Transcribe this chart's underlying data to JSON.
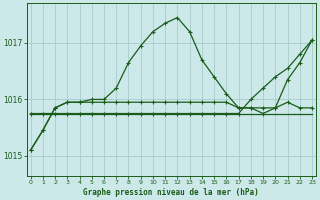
{
  "title": "Graphe pression niveau de la mer (hPa)",
  "x_ticks": [
    0,
    1,
    2,
    3,
    4,
    5,
    6,
    7,
    8,
    9,
    10,
    11,
    12,
    13,
    14,
    15,
    16,
    17,
    18,
    19,
    20,
    21,
    22,
    23
  ],
  "y_ticks": [
    1015,
    1016,
    1017
  ],
  "ylim": [
    1014.65,
    1017.7
  ],
  "xlim": [
    -0.3,
    23.3
  ],
  "bg_color": "#cce8e8",
  "grid_color": "#aacccc",
  "line_color": "#1a5c1a",
  "series_upper": [
    1015.1,
    1015.45,
    1015.85,
    1015.95,
    1015.95,
    1016.0,
    1016.0,
    1016.2,
    1016.65,
    1016.95,
    1017.2,
    1017.35,
    1017.45,
    1017.2,
    1016.7,
    1016.4,
    1016.1,
    1015.85,
    1015.85,
    1015.85,
    1015.85,
    1016.35,
    1016.65,
    1017.05
  ],
  "series_lower": [
    1015.1,
    1015.45,
    1015.85,
    1015.95,
    1015.95,
    1015.95,
    1015.95,
    1015.95,
    1015.95,
    1015.95,
    1015.95,
    1015.95,
    1015.95,
    1015.95,
    1015.95,
    1015.95,
    1015.95,
    1015.85,
    1015.85,
    1015.75,
    1015.85,
    1015.95,
    1015.85,
    1015.85
  ],
  "series_trend_bottom": [
    1015.75,
    1015.75,
    1015.75,
    1015.75,
    1015.75,
    1015.75,
    1015.75,
    1015.75,
    1015.75,
    1015.75,
    1015.75,
    1015.75,
    1015.75,
    1015.75,
    1015.75,
    1015.75,
    1015.75,
    1015.75,
    1015.75,
    1015.75,
    1015.75,
    1015.75,
    1015.75,
    1015.75
  ],
  "series_trend_top": [
    1015.75,
    1015.75,
    1015.75,
    1015.75,
    1015.75,
    1015.75,
    1015.75,
    1015.75,
    1015.75,
    1015.75,
    1015.75,
    1015.75,
    1015.75,
    1015.75,
    1015.75,
    1015.75,
    1015.75,
    1015.75,
    1016.0,
    1016.2,
    1016.4,
    1016.55,
    1016.8,
    1017.05
  ]
}
